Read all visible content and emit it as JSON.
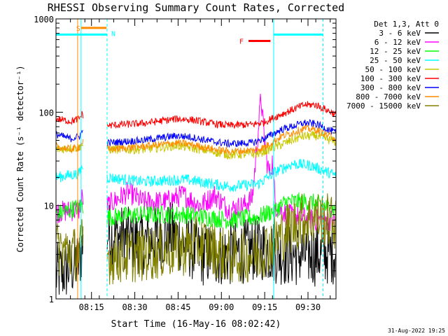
{
  "chart_data": {
    "type": "line",
    "title": "RHESSI Observing Summary Count Rates, Corrected",
    "xlabel": "Start Time (16-May-16 08:02:42)",
    "ylabel": "Corrected Count Rate (s⁻¹ detector⁻¹)",
    "yscale": "log",
    "ylim": [
      1,
      1000
    ],
    "xlim_minutes": [
      0,
      97
    ],
    "y_ticks": [
      "1",
      "10",
      "100",
      "1000"
    ],
    "x_ticks": [
      {
        "label": "08:15",
        "minute": 12.3
      },
      {
        "label": "08:30",
        "minute": 27.3
      },
      {
        "label": "08:45",
        "minute": 42.3
      },
      {
        "label": "09:00",
        "minute": 57.3
      },
      {
        "label": "09:15",
        "minute": 72.3
      },
      {
        "label": "09:30",
        "minute": 87.3
      }
    ],
    "legend_title": "Det 1,3, Att 0",
    "legend_position": "right",
    "data_gap_minutes": [
      9.5,
      17.7
    ],
    "series": [
      {
        "name": "3 - 6 keV",
        "color": "#000000",
        "noise": 0.35,
        "points": [
          [
            0,
            1.8
          ],
          [
            8,
            2.5
          ],
          [
            9,
            3.5
          ],
          [
            18,
            5
          ],
          [
            30,
            4
          ],
          [
            40,
            5
          ],
          [
            50,
            3
          ],
          [
            60,
            3
          ],
          [
            70,
            3.5
          ],
          [
            80,
            3
          ],
          [
            90,
            3
          ],
          [
            97,
            3.2
          ]
        ]
      },
      {
        "name": "6 - 12 keV",
        "color": "#ff00ff",
        "noise": 0.12,
        "points": [
          [
            0,
            8.5
          ],
          [
            8,
            9
          ],
          [
            9,
            12
          ],
          [
            18,
            10
          ],
          [
            25,
            14
          ],
          [
            30,
            11
          ],
          [
            38,
            11
          ],
          [
            44,
            13
          ],
          [
            50,
            10
          ],
          [
            55,
            13
          ],
          [
            60,
            9
          ],
          [
            65,
            10
          ],
          [
            68,
            12
          ],
          [
            70,
            60
          ],
          [
            71,
            150
          ],
          [
            72,
            60
          ],
          [
            73,
            30
          ],
          [
            74,
            22
          ],
          [
            75,
            30
          ],
          [
            76,
            10
          ],
          [
            80,
            8
          ],
          [
            90,
            7
          ],
          [
            97,
            7
          ]
        ]
      },
      {
        "name": "12 - 25 keV",
        "color": "#00ff00",
        "noise": 0.1,
        "points": [
          [
            0,
            8
          ],
          [
            9,
            10
          ],
          [
            18,
            7.5
          ],
          [
            30,
            8
          ],
          [
            45,
            8
          ],
          [
            60,
            7
          ],
          [
            70,
            7.5
          ],
          [
            76,
            9
          ],
          [
            80,
            11
          ],
          [
            88,
            11
          ],
          [
            97,
            9
          ]
        ]
      },
      {
        "name": "25 - 50 keV",
        "color": "#00ffff",
        "noise": 0.06,
        "points": [
          [
            0,
            20
          ],
          [
            8,
            22
          ],
          [
            9,
            26
          ],
          [
            18,
            20
          ],
          [
            30,
            18
          ],
          [
            45,
            19
          ],
          [
            60,
            16
          ],
          [
            70,
            17
          ],
          [
            76,
            23
          ],
          [
            82,
            28
          ],
          [
            88,
            27
          ],
          [
            97,
            21
          ]
        ]
      },
      {
        "name": "50 - 100 keV",
        "color": "#c8c800",
        "noise": 0.05,
        "points": [
          [
            0,
            40
          ],
          [
            8,
            42
          ],
          [
            9,
            45
          ],
          [
            18,
            40
          ],
          [
            30,
            40
          ],
          [
            42,
            44
          ],
          [
            50,
            40
          ],
          [
            60,
            35
          ],
          [
            70,
            36
          ],
          [
            78,
            45
          ],
          [
            85,
            55
          ],
          [
            90,
            56
          ],
          [
            97,
            48
          ]
        ]
      },
      {
        "name": "100 - 300 keV",
        "color": "#ff0000",
        "noise": 0.04,
        "points": [
          [
            0,
            85
          ],
          [
            5,
            80
          ],
          [
            8,
            85
          ],
          [
            9,
            95
          ],
          [
            18,
            72
          ],
          [
            30,
            76
          ],
          [
            42,
            85
          ],
          [
            47,
            83
          ],
          [
            55,
            75
          ],
          [
            60,
            72
          ],
          [
            68,
            74
          ],
          [
            72,
            78
          ],
          [
            78,
            95
          ],
          [
            86,
            120
          ],
          [
            90,
            120
          ],
          [
            97,
            95
          ]
        ]
      },
      {
        "name": "300 - 800 keV",
        "color": "#0000ff",
        "noise": 0.04,
        "points": [
          [
            0,
            58
          ],
          [
            5,
            52
          ],
          [
            8,
            55
          ],
          [
            9,
            62
          ],
          [
            18,
            47
          ],
          [
            30,
            50
          ],
          [
            42,
            56
          ],
          [
            47,
            54
          ],
          [
            55,
            48
          ],
          [
            60,
            46
          ],
          [
            68,
            47
          ],
          [
            72,
            52
          ],
          [
            78,
            65
          ],
          [
            86,
            77
          ],
          [
            90,
            75
          ],
          [
            97,
            60
          ]
        ]
      },
      {
        "name": "800 - 7000 keV",
        "color": "#ff8c00",
        "noise": 0.04,
        "points": [
          [
            0,
            43
          ],
          [
            5,
            40
          ],
          [
            8,
            42
          ],
          [
            9,
            48
          ],
          [
            18,
            40
          ],
          [
            30,
            43
          ],
          [
            42,
            47
          ],
          [
            47,
            45
          ],
          [
            55,
            40
          ],
          [
            60,
            38
          ],
          [
            68,
            39
          ],
          [
            72,
            42
          ],
          [
            78,
            55
          ],
          [
            86,
            67
          ],
          [
            90,
            65
          ],
          [
            97,
            52
          ]
        ]
      },
      {
        "name": "7000 - 15000 keV",
        "color": "#808000",
        "noise": 0.3,
        "points": [
          [
            0,
            3.5
          ],
          [
            8,
            3
          ],
          [
            9,
            3.8
          ],
          [
            18,
            2.8
          ],
          [
            30,
            3
          ],
          [
            45,
            3.5
          ],
          [
            50,
            4
          ],
          [
            60,
            2.8
          ],
          [
            70,
            3
          ],
          [
            75,
            4
          ],
          [
            80,
            5.5
          ],
          [
            85,
            7
          ],
          [
            90,
            7.5
          ],
          [
            97,
            6.5
          ]
        ]
      }
    ],
    "attenuator_flags": [
      {
        "label": "S",
        "color": "#ff8c00",
        "start_minute": 7,
        "end_minute": 17.5,
        "level": 800
      },
      {
        "label": "F",
        "color": "#ff0000",
        "start_minute": 66.7,
        "end_minute": 74.3,
        "level": 580
      }
    ],
    "night_intervals": [
      {
        "label": "N",
        "color": "#00ffff",
        "start_minute": 0,
        "end_minute": 17.7,
        "level": 680
      },
      {
        "label": "",
        "color": "#00ffff",
        "start_minute": 75.4,
        "end_minute": 92.5,
        "level": 680
      }
    ],
    "vertical_markers": [
      {
        "minute": 7.5,
        "color": "#ff8c00",
        "style": "solid"
      },
      {
        "minute": 8.7,
        "color": "#00ffff",
        "style": "solid"
      },
      {
        "minute": 17.7,
        "color": "#00ffff",
        "style": "dashed"
      },
      {
        "minute": 75.4,
        "color": "#00ffff",
        "style": "solid"
      },
      {
        "minute": 92.5,
        "color": "#00ffff",
        "style": "dashed"
      }
    ]
  },
  "footer": {
    "generated_date": "31-Aug-2022 19:25"
  }
}
